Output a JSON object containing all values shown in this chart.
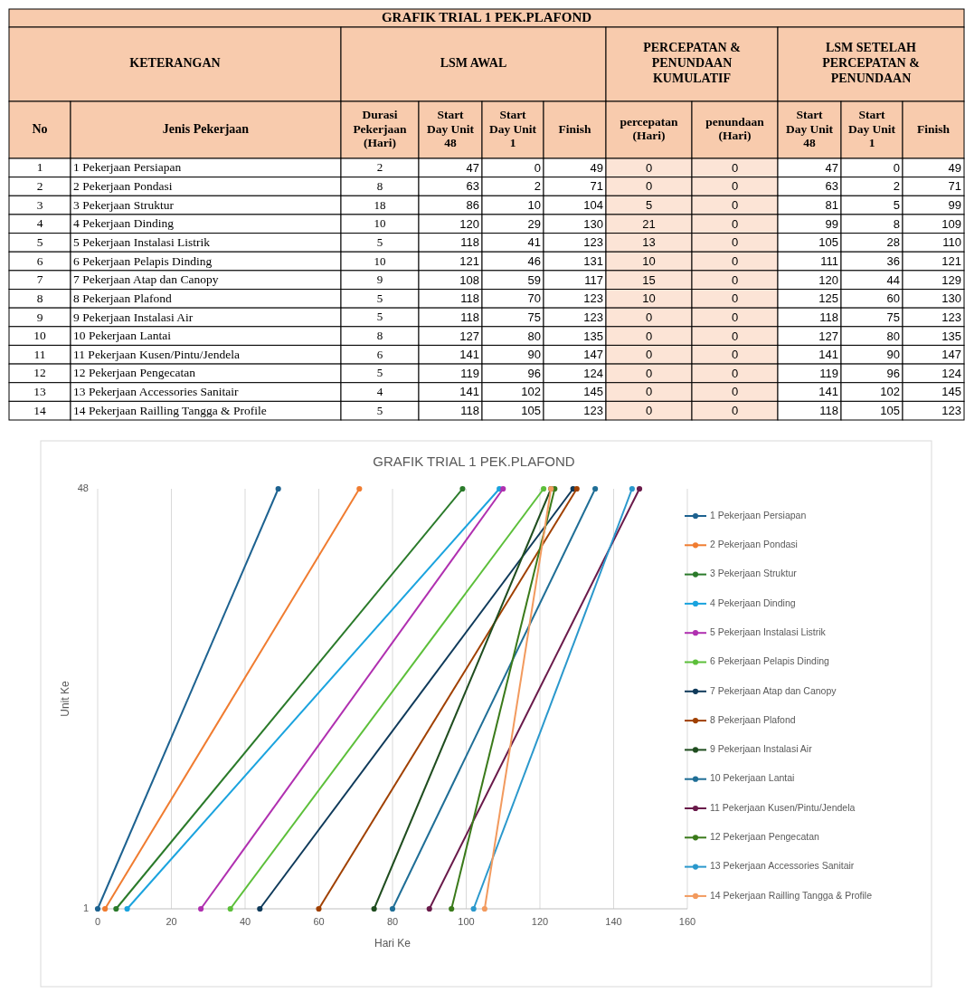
{
  "chart_data": [
    {
      "type": "heatmap",
      "title": "GRAFIK TRIAL 1 PEK.PLAFOND",
      "data_labels": true,
      "annotations": [
        "KETERANGAN",
        "LSM AWAL",
        "PERCEPATAN & PENUNDAAN KUMULATIF",
        "LSM SETELAH PERCEPATAN & PENUNDAAN",
        "No",
        "Jenis Pekerjaan",
        "1",
        "2",
        "3",
        "4",
        "5",
        "6",
        "7",
        "8",
        "9",
        "10",
        "11",
        "12",
        "13",
        "14"
      ],
      "categories": [
        "Durasi Pekerjaan (Hari)",
        "Start Day Unit 48",
        "Start Day Unit 1",
        "Finish",
        "percepatan (Hari)",
        "penundaan (Hari)",
        "Start Day Unit 48",
        "Start Day Unit 1",
        "Finish"
      ],
      "y_categories": [
        "1 Pekerjaan Persiapan",
        "2 Pekerjaan Pondasi",
        "3 Pekerjaan Struktur",
        "4 Pekerjaan Dinding",
        "5 Pekerjaan Instalasi Listrik",
        "6 Pekerjaan Pelapis Dinding",
        "7 Pekerjaan Atap dan Canopy",
        "8 Pekerjaan Plafond",
        "9 Pekerjaan Instalasi Air",
        "10 Pekerjaan Lantai",
        "11 Pekerjaan Kusen/Pintu/Jendela",
        "12 Pekerjaan Pengecatan",
        "13 Pekerjaan Accessories Sanitair",
        "14 Pekerjaan Railling Tangga & Profile"
      ],
      "cells": [
        [
          2,
          47,
          0,
          49,
          0,
          0,
          47,
          0,
          49
        ],
        [
          8,
          63,
          2,
          71,
          0,
          0,
          63,
          2,
          71
        ],
        [
          18,
          86,
          10,
          104,
          5,
          0,
          81,
          5,
          99
        ],
        [
          10,
          120,
          29,
          130,
          21,
          0,
          99,
          8,
          109
        ],
        [
          5,
          118,
          41,
          123,
          13,
          0,
          105,
          28,
          110
        ],
        [
          10,
          121,
          46,
          131,
          10,
          0,
          111,
          36,
          121
        ],
        [
          9,
          108,
          59,
          117,
          15,
          0,
          120,
          44,
          129
        ],
        [
          5,
          118,
          70,
          123,
          10,
          0,
          125,
          60,
          130
        ],
        [
          5,
          118,
          75,
          123,
          0,
          0,
          118,
          75,
          123
        ],
        [
          8,
          127,
          80,
          135,
          0,
          0,
          127,
          80,
          135
        ],
        [
          6,
          141,
          90,
          147,
          0,
          0,
          141,
          90,
          147
        ],
        [
          5,
          119,
          96,
          124,
          0,
          0,
          119,
          96,
          124
        ],
        [
          4,
          141,
          102,
          145,
          0,
          0,
          141,
          102,
          145
        ],
        [
          5,
          118,
          105,
          123,
          0,
          0,
          118,
          105,
          123
        ]
      ]
    },
    {
      "type": "line",
      "title": "GRAFIK TRIAL 1 PEK.PLAFOND",
      "xlabel": "Hari Ke",
      "ylabel": "Unit Ke",
      "xlim": [
        0,
        160
      ],
      "xticks": [
        0,
        20,
        40,
        60,
        80,
        100,
        120,
        140,
        160
      ],
      "ylim": [
        1,
        48
      ],
      "yticks": [
        1,
        48
      ],
      "grid": "x",
      "legend": "right",
      "marker": "circle",
      "series": [
        {
          "name": "1 Pekerjaan Persiapan",
          "color": "#1d6290",
          "x": [
            0,
            49
          ],
          "values": [
            1,
            48
          ]
        },
        {
          "name": "2 Pekerjaan Pondasi",
          "color": "#f07c30",
          "x": [
            2,
            71
          ],
          "values": [
            1,
            48
          ]
        },
        {
          "name": "3 Pekerjaan Struktur",
          "color": "#2a7a2a",
          "x": [
            5,
            99
          ],
          "values": [
            1,
            48
          ]
        },
        {
          "name": "4 Pekerjaan Dinding",
          "color": "#1aa3de",
          "x": [
            8,
            109
          ],
          "values": [
            1,
            48
          ]
        },
        {
          "name": "5 Pekerjaan Instalasi Listrik",
          "color": "#b030b0",
          "x": [
            28,
            110
          ],
          "values": [
            1,
            48
          ]
        },
        {
          "name": "6 Pekerjaan Pelapis Dinding",
          "color": "#5cbf3a",
          "x": [
            36,
            121
          ],
          "values": [
            1,
            48
          ]
        },
        {
          "name": "7 Pekerjaan Atap dan Canopy",
          "color": "#0f3a5a",
          "x": [
            44,
            129
          ],
          "values": [
            1,
            48
          ]
        },
        {
          "name": "8 Pekerjaan Plafond",
          "color": "#a04000",
          "x": [
            60,
            130
          ],
          "values": [
            1,
            48
          ]
        },
        {
          "name": "9 Pekerjaan Instalasi Air",
          "color": "#1f4d1f",
          "x": [
            75,
            123
          ],
          "values": [
            1,
            48
          ]
        },
        {
          "name": "10 Pekerjaan Lantai",
          "color": "#1f6e96",
          "x": [
            80,
            135
          ],
          "values": [
            1,
            48
          ]
        },
        {
          "name": "11 Pekerjaan Kusen/Pintu/Jendela",
          "color": "#6a1a4a",
          "x": [
            90,
            147
          ],
          "values": [
            1,
            48
          ]
        },
        {
          "name": "12 Pekerjaan Pengecatan",
          "color": "#3a7a1a",
          "x": [
            96,
            124
          ],
          "values": [
            1,
            48
          ]
        },
        {
          "name": "13 Pekerjaan Accessories Sanitair",
          "color": "#2a98cc",
          "x": [
            102,
            145
          ],
          "values": [
            1,
            48
          ]
        },
        {
          "name": "14 Pekerjaan Railling Tangga & Profile",
          "color": "#f29a5e",
          "x": [
            105,
            123
          ],
          "values": [
            1,
            48
          ]
        }
      ]
    }
  ]
}
